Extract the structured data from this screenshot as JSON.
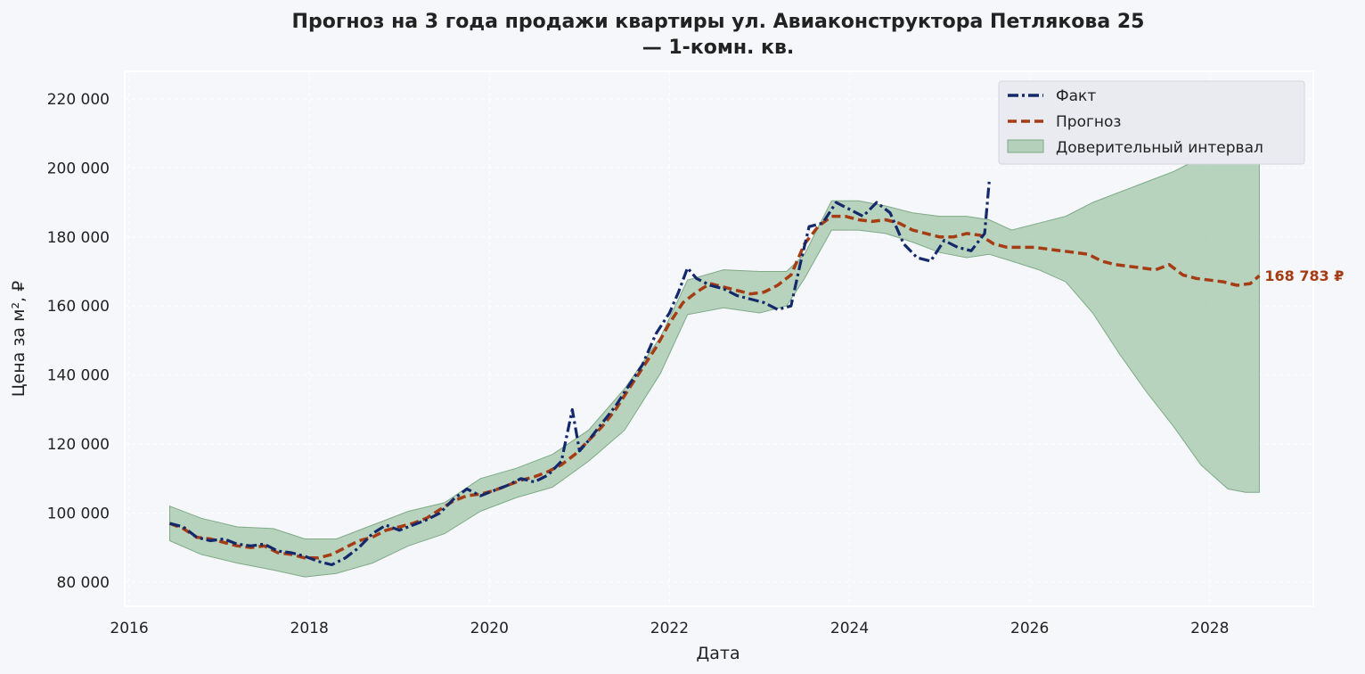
{
  "chart_data": {
    "type": "line",
    "title_line1": "Прогноз на 3 года продажи квартиры  ул. Авиаконструктора Петлякова 25",
    "title_line2": "— 1-комн. кв.",
    "xlabel": "Дата",
    "ylabel": "Цена за м², ₽",
    "xlim": [
      2015.95,
      2029.15
    ],
    "ylim": [
      73000,
      228000
    ],
    "x_ticks": [
      2016,
      2018,
      2020,
      2022,
      2024,
      2026,
      2028
    ],
    "x_tick_labels": [
      "2016",
      "2018",
      "2020",
      "2022",
      "2024",
      "2026",
      "2028"
    ],
    "y_ticks": [
      80000,
      100000,
      120000,
      140000,
      160000,
      180000,
      200000,
      220000
    ],
    "y_tick_labels": [
      "80 000",
      "100 000",
      "120 000",
      "140 000",
      "160 000",
      "180 000",
      "200 000",
      "220 000"
    ],
    "grid": true,
    "legend_position": "top-right",
    "colors": {
      "fact": "#14296b",
      "forecast": "#a63c14",
      "band_fill": "#9dc3a2",
      "band_edge": "#7faa86",
      "background": "#f5f7fb",
      "grid": "#ffffff"
    },
    "series": [
      {
        "name": "Факт",
        "style": "dash-dot",
        "x": [
          2016.45,
          2016.6,
          2016.75,
          2016.9,
          2017.05,
          2017.2,
          2017.35,
          2017.5,
          2017.65,
          2017.8,
          2017.95,
          2018.1,
          2018.25,
          2018.4,
          2018.55,
          2018.7,
          2018.85,
          2019.0,
          2019.15,
          2019.3,
          2019.45,
          2019.6,
          2019.75,
          2019.9,
          2020.05,
          2020.2,
          2020.35,
          2020.5,
          2020.65,
          2020.8,
          2020.92,
          2021.0,
          2021.1,
          2021.25,
          2021.4,
          2021.55,
          2021.7,
          2021.85,
          2022.0,
          2022.1,
          2022.2,
          2022.3,
          2022.45,
          2022.6,
          2022.75,
          2022.9,
          2023.05,
          2023.2,
          2023.35,
          2023.45,
          2023.55,
          2023.7,
          2023.85,
          2024.0,
          2024.15,
          2024.3,
          2024.45,
          2024.6,
          2024.75,
          2024.9,
          2025.05,
          2025.2,
          2025.35,
          2025.5,
          2025.55
        ],
        "values": [
          97000,
          96000,
          93000,
          92000,
          92500,
          91000,
          90500,
          91000,
          89000,
          88500,
          87500,
          86000,
          85000,
          87000,
          90000,
          94000,
          96500,
          95000,
          96500,
          98000,
          100000,
          104000,
          107000,
          105000,
          106500,
          108000,
          110000,
          109000,
          111000,
          115000,
          130000,
          118000,
          121000,
          126000,
          131000,
          137000,
          143000,
          152000,
          158000,
          164000,
          171000,
          168000,
          166000,
          165000,
          163000,
          162000,
          161000,
          159000,
          160000,
          172000,
          183000,
          184000,
          190000,
          188000,
          186000,
          190000,
          187000,
          178000,
          174000,
          173000,
          179000,
          177000,
          176000,
          181000,
          196000
        ]
      },
      {
        "name": "Прогноз",
        "style": "dashed",
        "x": [
          2016.45,
          2016.6,
          2016.75,
          2016.9,
          2017.05,
          2017.2,
          2017.35,
          2017.5,
          2017.65,
          2017.8,
          2017.95,
          2018.1,
          2018.25,
          2018.4,
          2018.55,
          2018.7,
          2018.85,
          2019.0,
          2019.15,
          2019.3,
          2019.45,
          2019.6,
          2019.75,
          2019.9,
          2020.05,
          2020.2,
          2020.35,
          2020.5,
          2020.65,
          2020.8,
          2020.95,
          2021.1,
          2021.25,
          2021.4,
          2021.55,
          2021.7,
          2021.85,
          2022.0,
          2022.15,
          2022.3,
          2022.45,
          2022.6,
          2022.75,
          2022.9,
          2023.05,
          2023.2,
          2023.35,
          2023.5,
          2023.65,
          2023.8,
          2023.95,
          2024.1,
          2024.25,
          2024.4,
          2024.55,
          2024.7,
          2024.85,
          2025.0,
          2025.15,
          2025.3,
          2025.45,
          2025.6,
          2025.75,
          2025.9,
          2026.05,
          2026.2,
          2026.35,
          2026.5,
          2026.65,
          2026.8,
          2026.95,
          2027.1,
          2027.25,
          2027.4,
          2027.55,
          2027.7,
          2027.85,
          2028.0,
          2028.15,
          2028.3,
          2028.45,
          2028.55
        ],
        "values": [
          97000,
          95500,
          93000,
          92500,
          91500,
          90500,
          90000,
          90500,
          88500,
          88000,
          87000,
          87000,
          88000,
          90000,
          92000,
          93000,
          95000,
          96000,
          97000,
          98500,
          101000,
          103500,
          105000,
          105500,
          106500,
          108000,
          109500,
          110500,
          112000,
          114000,
          117000,
          121000,
          125000,
          130000,
          136000,
          142000,
          148000,
          155000,
          161000,
          164000,
          166500,
          165500,
          164500,
          163500,
          164000,
          166000,
          169000,
          178000,
          183000,
          186000,
          186000,
          185000,
          184500,
          185000,
          184000,
          182000,
          181000,
          180000,
          180000,
          181000,
          180500,
          178000,
          177000,
          177000,
          177000,
          176500,
          176000,
          175500,
          175000,
          173000,
          172000,
          171500,
          171000,
          170500,
          172000,
          169000,
          168000,
          167500,
          167000,
          166000,
          166500,
          168783
        ]
      }
    ],
    "band": {
      "name": "Доверительный интервал",
      "x": [
        2016.45,
        2016.8,
        2017.2,
        2017.6,
        2017.95,
        2018.3,
        2018.7,
        2019.1,
        2019.5,
        2019.9,
        2020.3,
        2020.7,
        2021.1,
        2021.5,
        2021.9,
        2022.2,
        2022.6,
        2023.0,
        2023.3,
        2023.5,
        2023.8,
        2024.1,
        2024.4,
        2024.7,
        2025.0,
        2025.3,
        2025.55,
        2025.8,
        2026.1,
        2026.4,
        2026.7,
        2027.0,
        2027.3,
        2027.6,
        2027.9,
        2028.2,
        2028.4,
        2028.55
      ],
      "upper": [
        102000,
        98500,
        96000,
        95500,
        92500,
        92500,
        96500,
        100500,
        103000,
        110000,
        113000,
        117000,
        124000,
        136000,
        151000,
        167500,
        170500,
        170000,
        170000,
        175000,
        190500,
        190500,
        189000,
        187000,
        186000,
        186000,
        185000,
        182000,
        184000,
        186000,
        190000,
        193000,
        196000,
        199000,
        203000,
        210000,
        214000,
        221000
      ],
      "lower": [
        92000,
        88000,
        85500,
        83500,
        81500,
        82500,
        85500,
        90500,
        94000,
        100500,
        104500,
        107500,
        115000,
        124000,
        140500,
        157500,
        159500,
        158000,
        160000,
        168000,
        182000,
        182000,
        181000,
        178500,
        175500,
        174000,
        175000,
        173000,
        170500,
        167000,
        158000,
        146000,
        135000,
        125000,
        114000,
        107000,
        106000,
        106000
      ]
    },
    "end_label": "168 783 ₽"
  }
}
